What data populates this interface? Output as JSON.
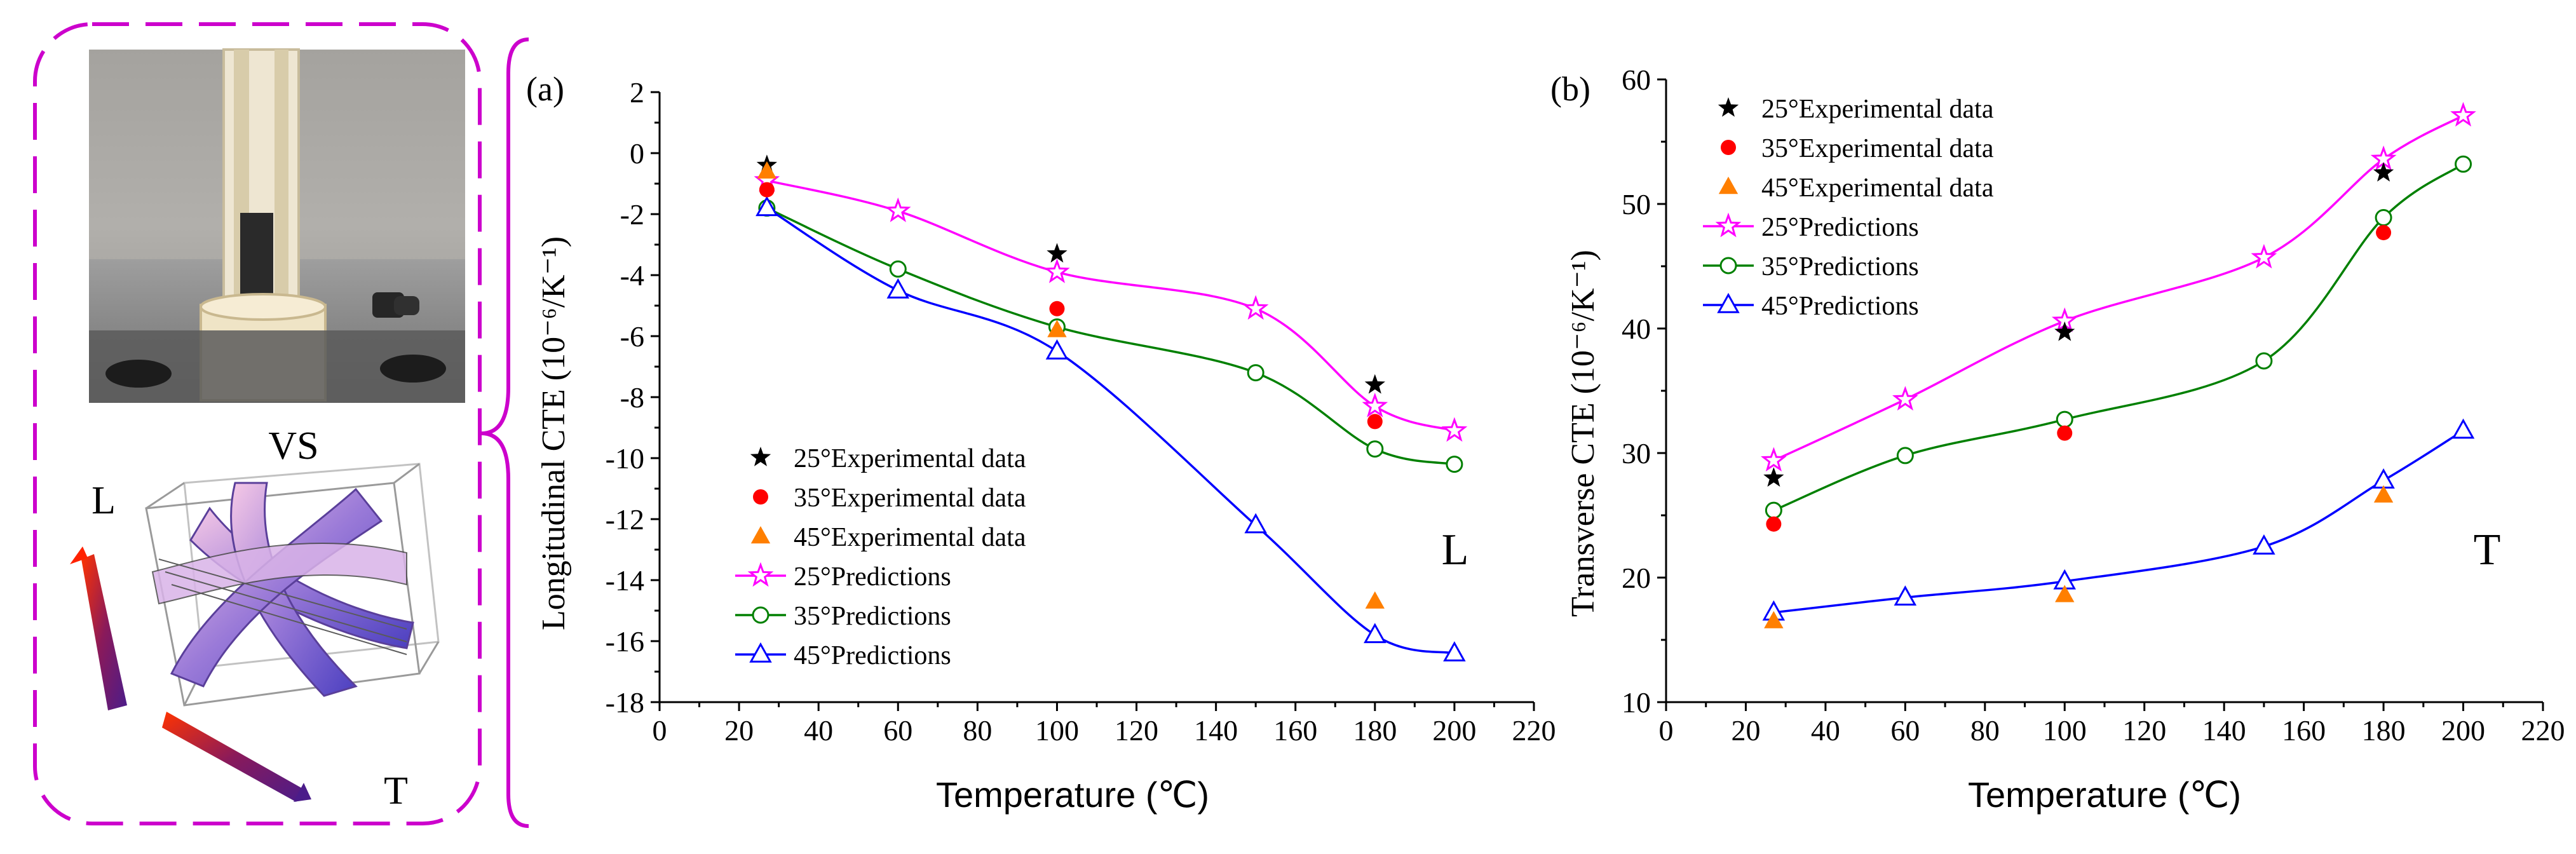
{
  "figure": {
    "left_panel": {
      "photo_label": "specimen-photo",
      "vs_label": "VS",
      "axis_label_l": "L",
      "axis_label_t": "T"
    }
  },
  "chart_data": [
    {
      "type": "line",
      "panel_label": "(a)",
      "corner_label": "L",
      "xlabel": "Temperature (℃)",
      "ylabel": "Longitudinal CTE (10⁻⁶/K⁻¹)",
      "xlim": [
        0,
        220
      ],
      "ylim": [
        -18,
        2
      ],
      "xticks": [
        0,
        20,
        40,
        60,
        80,
        100,
        120,
        140,
        160,
        180,
        200,
        220
      ],
      "yticks": [
        -18,
        -16,
        -14,
        -12,
        -10,
        -8,
        -6,
        -4,
        -2,
        0,
        2
      ],
      "legend_position": "lower-left",
      "experimental": [
        {
          "name": "25°Experimental data",
          "color": "#000000",
          "marker": "star",
          "x": [
            27,
            100,
            180
          ],
          "y": [
            -0.4,
            -3.3,
            -7.6
          ]
        },
        {
          "name": "35°Experimental data",
          "color": "#ff0000",
          "marker": "circle",
          "x": [
            27,
            100,
            180
          ],
          "y": [
            -1.2,
            -5.1,
            -8.8
          ]
        },
        {
          "name": "45°Experimental data",
          "color": "#ff7f00",
          "marker": "triangle",
          "x": [
            27,
            100,
            180
          ],
          "y": [
            -0.6,
            -5.8,
            -14.7
          ]
        }
      ],
      "predictions": [
        {
          "name": "25°Predictions",
          "color": "#ff00ff",
          "marker": "star-open",
          "x": [
            27,
            60,
            100,
            150,
            180,
            200
          ],
          "y": [
            -0.9,
            -1.9,
            -3.9,
            -5.1,
            -8.3,
            -9.1
          ]
        },
        {
          "name": "35°Predictions",
          "color": "#008000",
          "marker": "circle-open",
          "x": [
            27,
            60,
            100,
            150,
            180,
            200
          ],
          "y": [
            -1.8,
            -3.8,
            -5.7,
            -7.2,
            -9.7,
            -10.2
          ]
        },
        {
          "name": "45°Predictions",
          "color": "#0000ff",
          "marker": "triangle-open",
          "x": [
            27,
            60,
            100,
            150,
            180,
            200
          ],
          "y": [
            -1.8,
            -4.5,
            -6.5,
            -12.2,
            -15.8,
            -16.4
          ]
        }
      ]
    },
    {
      "type": "line",
      "panel_label": "(b)",
      "corner_label": "T",
      "xlabel": "Temperature (℃)",
      "ylabel": "Transverse CTE (10⁻⁶/K⁻¹)",
      "xlim": [
        0,
        220
      ],
      "ylim": [
        10,
        60
      ],
      "xticks": [
        0,
        20,
        40,
        60,
        80,
        100,
        120,
        140,
        160,
        180,
        200,
        220
      ],
      "yticks": [
        10,
        20,
        30,
        40,
        50,
        60
      ],
      "legend_position": "upper-left",
      "experimental": [
        {
          "name": "25°Experimental data",
          "color": "#000000",
          "marker": "star",
          "x": [
            27,
            100,
            180
          ],
          "y": [
            28.0,
            39.7,
            52.5
          ]
        },
        {
          "name": "35°Experimental data",
          "color": "#ff0000",
          "marker": "circle",
          "x": [
            27,
            100,
            180
          ],
          "y": [
            24.3,
            31.6,
            47.7
          ]
        },
        {
          "name": "45°Experimental data",
          "color": "#ff7f00",
          "marker": "triangle",
          "x": [
            27,
            100,
            180
          ],
          "y": [
            16.5,
            18.6,
            26.6
          ]
        }
      ],
      "predictions": [
        {
          "name": "25°Predictions",
          "color": "#ff00ff",
          "marker": "star-open",
          "x": [
            27,
            60,
            100,
            150,
            180,
            200
          ],
          "y": [
            29.4,
            34.3,
            40.6,
            45.7,
            53.6,
            57.1
          ]
        },
        {
          "name": "35°Predictions",
          "color": "#008000",
          "marker": "circle-open",
          "x": [
            27,
            60,
            100,
            150,
            180,
            200
          ],
          "y": [
            25.4,
            29.8,
            32.7,
            37.4,
            48.9,
            53.2
          ]
        },
        {
          "name": "45°Predictions",
          "color": "#0000ff",
          "marker": "triangle-open",
          "x": [
            27,
            60,
            100,
            150,
            180,
            200
          ],
          "y": [
            17.2,
            18.4,
            19.7,
            22.5,
            27.8,
            31.8
          ]
        }
      ]
    }
  ]
}
